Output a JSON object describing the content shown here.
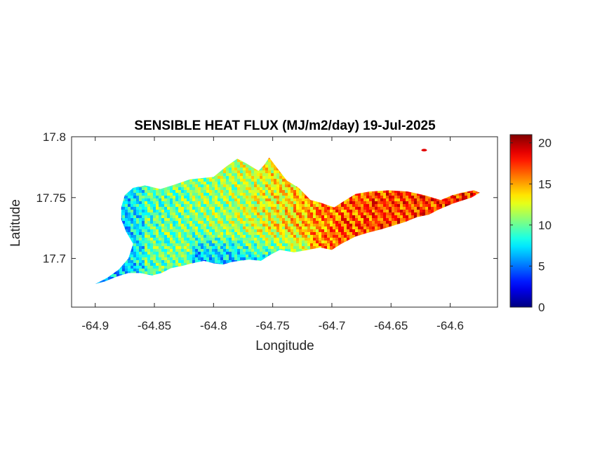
{
  "chart_data": {
    "type": "heatmap",
    "title": "SENSIBLE HEAT FLUX (MJ/m2/day) 19-Jul-2025",
    "xlabel": "Longitude",
    "ylabel": "Latitude",
    "xlim": [
      -64.92,
      -64.56
    ],
    "ylim": [
      17.66,
      17.8
    ],
    "x_ticks": [
      -64.9,
      -64.85,
      -64.8,
      -64.75,
      -64.7,
      -64.65,
      -64.6
    ],
    "x_tick_labels": [
      "-64.9",
      "-64.85",
      "-64.8",
      "-64.75",
      "-64.7",
      "-64.65",
      "-64.6"
    ],
    "y_ticks": [
      17.7,
      17.75,
      17.8
    ],
    "y_tick_labels": [
      "17.7",
      "17.75",
      "17.8"
    ],
    "colorbar": {
      "colormap": "jet",
      "clim": [
        0,
        21
      ],
      "ticks": [
        0,
        5,
        10,
        15,
        20
      ],
      "tick_labels": [
        "0",
        "5",
        "10",
        "15",
        "20"
      ]
    },
    "grid": false,
    "field": {
      "region_outline": [
        [
          -64.9,
          17.679
        ],
        [
          -64.89,
          17.684
        ],
        [
          -64.88,
          17.691
        ],
        [
          -64.872,
          17.7
        ],
        [
          -64.868,
          17.712
        ],
        [
          -64.874,
          17.722
        ],
        [
          -64.878,
          17.732
        ],
        [
          -64.878,
          17.742
        ],
        [
          -64.875,
          17.752
        ],
        [
          -64.868,
          17.758
        ],
        [
          -64.858,
          17.76
        ],
        [
          -64.845,
          17.757
        ],
        [
          -64.835,
          17.76
        ],
        [
          -64.82,
          17.765
        ],
        [
          -64.8,
          17.767
        ],
        [
          -64.79,
          17.775
        ],
        [
          -64.78,
          17.782
        ],
        [
          -64.772,
          17.778
        ],
        [
          -64.762,
          17.772
        ],
        [
          -64.757,
          17.777
        ],
        [
          -64.753,
          17.783
        ],
        [
          -64.746,
          17.774
        ],
        [
          -64.738,
          17.764
        ],
        [
          -64.728,
          17.758
        ],
        [
          -64.718,
          17.748
        ],
        [
          -64.71,
          17.746
        ],
        [
          -64.698,
          17.742
        ],
        [
          -64.69,
          17.747
        ],
        [
          -64.68,
          17.753
        ],
        [
          -64.668,
          17.755
        ],
        [
          -64.652,
          17.756
        ],
        [
          -64.636,
          17.755
        ],
        [
          -64.622,
          17.752
        ],
        [
          -64.608,
          17.748
        ],
        [
          -64.598,
          17.752
        ],
        [
          -64.59,
          17.754
        ],
        [
          -64.58,
          17.756
        ],
        [
          -64.575,
          17.754
        ],
        [
          -64.582,
          17.75
        ],
        [
          -64.598,
          17.745
        ],
        [
          -64.61,
          17.74
        ],
        [
          -64.618,
          17.736
        ],
        [
          -64.628,
          17.734
        ],
        [
          -64.638,
          17.73
        ],
        [
          -64.648,
          17.727
        ],
        [
          -64.658,
          17.724
        ],
        [
          -64.67,
          17.721
        ],
        [
          -64.68,
          17.718
        ],
        [
          -64.692,
          17.712
        ],
        [
          -64.7,
          17.707
        ],
        [
          -64.71,
          17.709
        ],
        [
          -64.72,
          17.707
        ],
        [
          -64.732,
          17.705
        ],
        [
          -64.744,
          17.707
        ],
        [
          -64.752,
          17.703
        ],
        [
          -64.76,
          17.698
        ],
        [
          -64.77,
          17.699
        ],
        [
          -64.778,
          17.698
        ],
        [
          -64.785,
          17.697
        ],
        [
          -64.792,
          17.695
        ],
        [
          -64.8,
          17.696
        ],
        [
          -64.808,
          17.698
        ],
        [
          -64.818,
          17.696
        ],
        [
          -64.826,
          17.694
        ],
        [
          -64.836,
          17.692
        ],
        [
          -64.844,
          17.688
        ],
        [
          -64.852,
          17.686
        ],
        [
          -64.862,
          17.688
        ],
        [
          -64.872,
          17.688
        ],
        [
          -64.882,
          17.685
        ],
        [
          -64.892,
          17.681
        ],
        [
          -64.9,
          17.679
        ]
      ],
      "islet": [
        -64.622,
        17.789
      ],
      "value_trend": [
        {
          "lon": -64.9,
          "flux": 9
        },
        {
          "lon": -64.86,
          "flux": 11
        },
        {
          "lon": -64.82,
          "flux": 12
        },
        {
          "lon": -64.78,
          "flux": 13
        },
        {
          "lon": -64.74,
          "flux": 15
        },
        {
          "lon": -64.71,
          "flux": 17
        },
        {
          "lon": -64.69,
          "flux": 18
        },
        {
          "lon": -64.65,
          "flux": 18.5
        },
        {
          "lon": -64.6,
          "flux": 19
        }
      ]
    }
  }
}
